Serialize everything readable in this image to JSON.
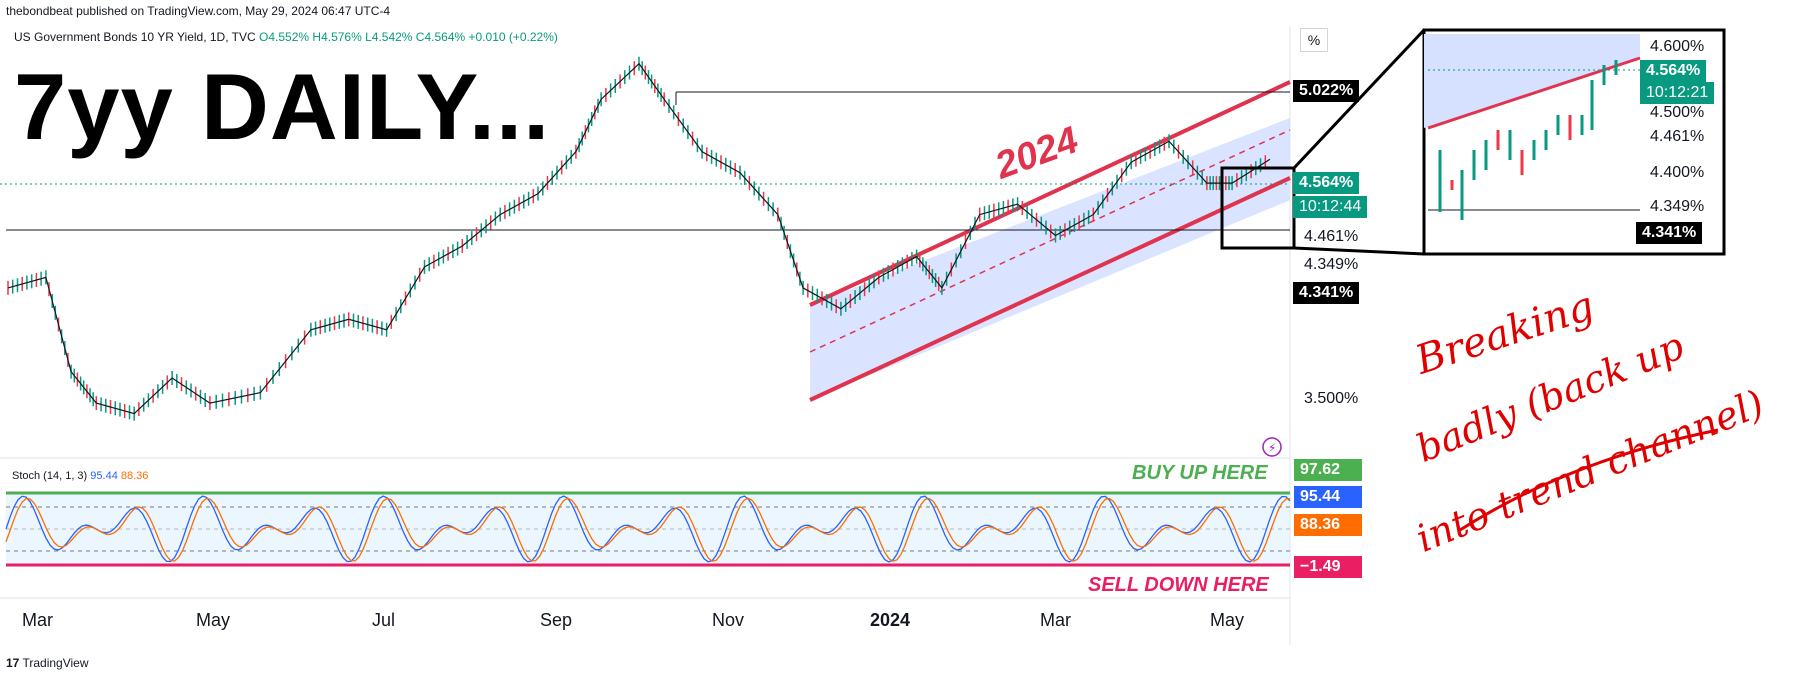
{
  "header": {
    "publisher": "thebondbeat published on TradingView.com, May 29, 2024 06:47 UTC-4"
  },
  "symbol": {
    "name": "US Government Bonds 10 YR Yield, 1D, TVC",
    "ohlc": "O4.552% H4.576% L4.542% C4.564% +0.010 (+0.22%)"
  },
  "overlay_title": "7yy DAILY...",
  "channel_label": "2024",
  "axis": {
    "unit_button": "%"
  },
  "price_labels": {
    "high": "5.022%",
    "current": "4.564%",
    "countdown": "10:12:44",
    "support": "4.461%",
    "level2": "4.349%",
    "low_box": "4.341%",
    "bottom": "3.500%"
  },
  "stoch": {
    "label": "Stoch (14, 1, 3)",
    "k": "95.44",
    "d": "88.36",
    "box_top": "97.62",
    "box_k": "95.44",
    "box_d": "88.36",
    "box_bottom": "−1.49",
    "buy_text": "BUY UP HERE",
    "sell_text": "SELL DOWN HERE"
  },
  "x_labels": [
    "Mar",
    "May",
    "Jul",
    "Sep",
    "Nov",
    "2024",
    "Mar",
    "May"
  ],
  "inset": {
    "labels": [
      "4.600%",
      "4.564%",
      "10:12:21",
      "4.500%",
      "4.461%",
      "4.400%",
      "4.349%",
      "4.341%"
    ]
  },
  "handwritten": [
    "Breaking",
    "badly (back up",
    "into trend channel)"
  ],
  "footer": {
    "brand": "TradingView"
  },
  "colors": {
    "up": "#089981",
    "down": "#f23645",
    "channel": "#e0334d",
    "fill": "#d6e0ff",
    "stoch_k": "#2962ff",
    "stoch_d": "#ff6d00"
  },
  "chart_data": {
    "type": "candlestick",
    "title": "US Government Bonds 10 YR Yield, 1D, TVC",
    "ylabel": "%",
    "ylim": [
      3.2,
      5.2
    ],
    "x_ticks": [
      "Mar",
      "May",
      "Jul",
      "Sep",
      "Nov",
      "2024",
      "Mar",
      "May"
    ],
    "key_levels": [
      5.022,
      4.564,
      4.461,
      4.349,
      4.341,
      3.5
    ],
    "path": [
      {
        "x": 0,
        "y": 3.95
      },
      {
        "x": 0.03,
        "y": 4.0
      },
      {
        "x": 0.05,
        "y": 3.55
      },
      {
        "x": 0.07,
        "y": 3.4
      },
      {
        "x": 0.1,
        "y": 3.35
      },
      {
        "x": 0.13,
        "y": 3.52
      },
      {
        "x": 0.16,
        "y": 3.4
      },
      {
        "x": 0.2,
        "y": 3.45
      },
      {
        "x": 0.24,
        "y": 3.75
      },
      {
        "x": 0.27,
        "y": 3.8
      },
      {
        "x": 0.3,
        "y": 3.75
      },
      {
        "x": 0.33,
        "y": 4.05
      },
      {
        "x": 0.36,
        "y": 4.15
      },
      {
        "x": 0.39,
        "y": 4.3
      },
      {
        "x": 0.42,
        "y": 4.4
      },
      {
        "x": 0.45,
        "y": 4.6
      },
      {
        "x": 0.47,
        "y": 4.85
      },
      {
        "x": 0.5,
        "y": 5.02
      },
      {
        "x": 0.52,
        "y": 4.85
      },
      {
        "x": 0.55,
        "y": 4.6
      },
      {
        "x": 0.58,
        "y": 4.5
      },
      {
        "x": 0.61,
        "y": 4.3
      },
      {
        "x": 0.63,
        "y": 3.95
      },
      {
        "x": 0.66,
        "y": 3.85
      },
      {
        "x": 0.69,
        "y": 4.0
      },
      {
        "x": 0.72,
        "y": 4.1
      },
      {
        "x": 0.74,
        "y": 3.95
      },
      {
        "x": 0.77,
        "y": 4.3
      },
      {
        "x": 0.8,
        "y": 4.35
      },
      {
        "x": 0.83,
        "y": 4.2
      },
      {
        "x": 0.86,
        "y": 4.3
      },
      {
        "x": 0.89,
        "y": 4.55
      },
      {
        "x": 0.92,
        "y": 4.65
      },
      {
        "x": 0.95,
        "y": 4.45
      },
      {
        "x": 0.97,
        "y": 4.45
      },
      {
        "x": 1.0,
        "y": 4.564
      }
    ],
    "stochastic": {
      "k_last": 95.44,
      "d_last": 88.36,
      "upper": 97.62,
      "lower": -1.49,
      "range": [
        -5,
        105
      ]
    }
  }
}
